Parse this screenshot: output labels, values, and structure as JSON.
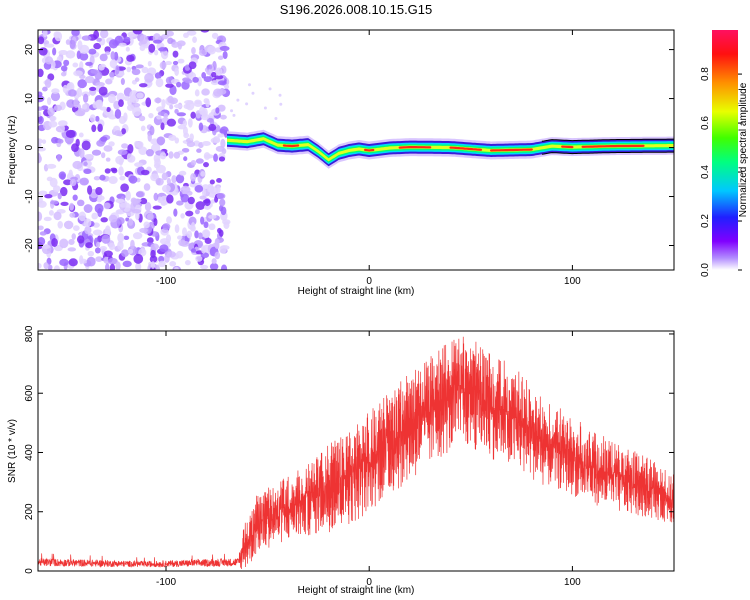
{
  "title": "S196.2026.008.10.15.G15",
  "chart_data": [
    {
      "type": "heatmap",
      "name": "spectrogram",
      "xlabel": "Height of straight line (km)",
      "ylabel": "Frequency (Hz)",
      "xlim": [
        -163,
        150
      ],
      "ylim": [
        -25,
        24
      ],
      "xticks": [
        -100,
        0,
        100
      ],
      "yticks": [
        20,
        10,
        0,
        -10,
        -20
      ],
      "colorbar": {
        "label": "Normalized spectral amplitude",
        "range": [
          0,
          0.98
        ],
        "ticks": [
          "0.0",
          "0.2",
          "0.4",
          "0.6",
          "0.8"
        ],
        "tick_values": [
          0,
          0.2,
          0.4,
          0.6,
          0.8
        ]
      },
      "noise_region_x": [
        -163,
        -70
      ],
      "signal_track": {
        "x": [
          -70,
          -60,
          -52,
          -45,
          -38,
          -30,
          -25,
          -20,
          -15,
          -10,
          -5,
          0,
          10,
          20,
          40,
          60,
          80,
          90,
          100,
          120,
          150
        ],
        "freq": [
          1.5,
          1.2,
          1.8,
          0.5,
          0.3,
          0.6,
          -0.8,
          -2.5,
          -1.2,
          -0.6,
          -0.3,
          -0.6,
          -0.1,
          0.1,
          0.0,
          -0.6,
          -0.4,
          0.3,
          0.1,
          0.3,
          0.4
        ]
      }
    },
    {
      "type": "line",
      "name": "snr",
      "xlabel": "Height of straight line (km)",
      "ylabel": "SNR (10 * v/v)",
      "xlim": [
        -163,
        150
      ],
      "ylim": [
        0,
        810
      ],
      "xticks": [
        -100,
        0,
        100
      ],
      "yticks": [
        0,
        200,
        400,
        600,
        800
      ],
      "color": "#ee3333",
      "envelope": {
        "x": [
          -163,
          -110,
          -64,
          -60,
          -55,
          -45,
          -35,
          -20,
          -5,
          5,
          20,
          35,
          45,
          55,
          65,
          75,
          85,
          95,
          105,
          120,
          135,
          150
        ],
        "upper": [
          60,
          45,
          60,
          220,
          260,
          300,
          350,
          430,
          500,
          580,
          670,
          760,
          800,
          770,
          720,
          670,
          590,
          550,
          500,
          440,
          390,
          330
        ],
        "lower": [
          5,
          5,
          5,
          5,
          60,
          90,
          110,
          130,
          170,
          230,
          300,
          380,
          420,
          400,
          360,
          330,
          290,
          270,
          240,
          200,
          180,
          160
        ]
      }
    }
  ]
}
